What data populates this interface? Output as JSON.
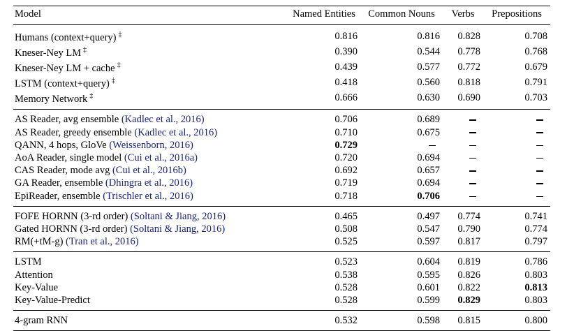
{
  "columns": [
    "Model",
    "Named Entities",
    "Common Nouns",
    "Verbs",
    "Prepositions"
  ],
  "groups": [
    [
      {
        "model": "Humans (context+query)",
        "dagger": "‡",
        "cite": "",
        "ne": "0.816",
        "cn": "0.816",
        "v": "0.828",
        "p": "0.708"
      },
      {
        "model": "Kneser-Ney LM",
        "dagger": "‡",
        "cite": "",
        "ne": "0.390",
        "cn": "0.544",
        "v": "0.778",
        "p": "0.768"
      },
      {
        "model": "Kneser-Ney LM + cache",
        "dagger": "‡",
        "cite": "",
        "ne": "0.439",
        "cn": "0.577",
        "v": "0.772",
        "p": "0.679"
      },
      {
        "model": "LSTM (context+query)",
        "dagger": "‡",
        "cite": "",
        "ne": "0.418",
        "cn": "0.560",
        "v": "0.818",
        "p": "0.791"
      },
      {
        "model": "Memory Network",
        "dagger": "‡",
        "cite": "",
        "ne": "0.666",
        "cn": "0.630",
        "v": "0.690",
        "p": "0.703"
      }
    ],
    [
      {
        "model": "AS Reader, avg ensemble",
        "dagger": "",
        "cite": "(Kadlec et al., 2016)",
        "ne": "0.706",
        "cn": "0.689",
        "v": "–",
        "p": "–"
      },
      {
        "model": "AS Reader, greedy ensemble",
        "dagger": "",
        "cite": "(Kadlec et al., 2016)",
        "ne": "0.710",
        "cn": "0.675",
        "v": "–",
        "p": "–"
      },
      {
        "model": "QANN, 4 hops, GloVe",
        "dagger": "",
        "cite": "(Weissenborn, 2016)",
        "ne": "0.729",
        "ne_bold": true,
        "cn": "–",
        "v": "–",
        "p": "–"
      },
      {
        "model": "AoA Reader, single model",
        "dagger": "",
        "cite": "(Cui et al., 2016a)",
        "ne": "0.720",
        "cn": "0.694",
        "v": "–",
        "p": "–"
      },
      {
        "model": "CAS Reader, mode avg",
        "dagger": "",
        "cite": "(Cui et al., 2016b)",
        "ne": "0.692",
        "cn": "0.657",
        "v": "–",
        "p": "–"
      },
      {
        "model": "GA Reader, ensemble",
        "dagger": "",
        "cite": "(Dhingra et al., 2016)",
        "ne": "0.719",
        "cn": "0.694",
        "v": "–",
        "p": "–"
      },
      {
        "model": "EpiReader, ensemble",
        "dagger": "",
        "cite": "(Trischler et al., 2016)",
        "ne": "0.718",
        "cn": "0.706",
        "cn_bold": true,
        "v": "–",
        "p": "–"
      }
    ],
    [
      {
        "model": "FOFE HORNN (3-rd order)",
        "dagger": "",
        "cite": "(Soltani & Jiang, 2016)",
        "ne": "0.465",
        "cn": "0.497",
        "v": "0.774",
        "p": "0.741"
      },
      {
        "model": "Gated HORNN (3-rd order)",
        "dagger": "",
        "cite": "(Soltani & Jiang, 2016)",
        "ne": "0.508",
        "cn": "0.547",
        "v": "0.790",
        "p": "0.774"
      },
      {
        "model": "RM(+tM-g)",
        "dagger": "",
        "cite": "(Tran et al., 2016)",
        "ne": "0.525",
        "cn": "0.597",
        "v": "0.817",
        "p": "0.797"
      }
    ],
    [
      {
        "model": "LSTM",
        "dagger": "",
        "cite": "",
        "ne": "0.523",
        "cn": "0.604",
        "v": "0.819",
        "p": "0.786"
      },
      {
        "model": "Attention",
        "dagger": "",
        "cite": "",
        "ne": "0.538",
        "cn": "0.595",
        "v": "0.826",
        "p": "0.803"
      },
      {
        "model": "Key-Value",
        "dagger": "",
        "cite": "",
        "ne": "0.528",
        "cn": "0.601",
        "v": "0.822",
        "p": "0.813",
        "p_bold": true
      },
      {
        "model": "Key-Value-Predict",
        "dagger": "",
        "cite": "",
        "ne": "0.528",
        "cn": "0.599",
        "v": "0.829",
        "v_bold": true,
        "p": "0.803"
      }
    ],
    [
      {
        "model": "4-gram RNN",
        "dagger": "",
        "cite": "",
        "ne": "0.532",
        "cn": "0.598",
        "v": "0.815",
        "p": "0.800"
      }
    ]
  ]
}
